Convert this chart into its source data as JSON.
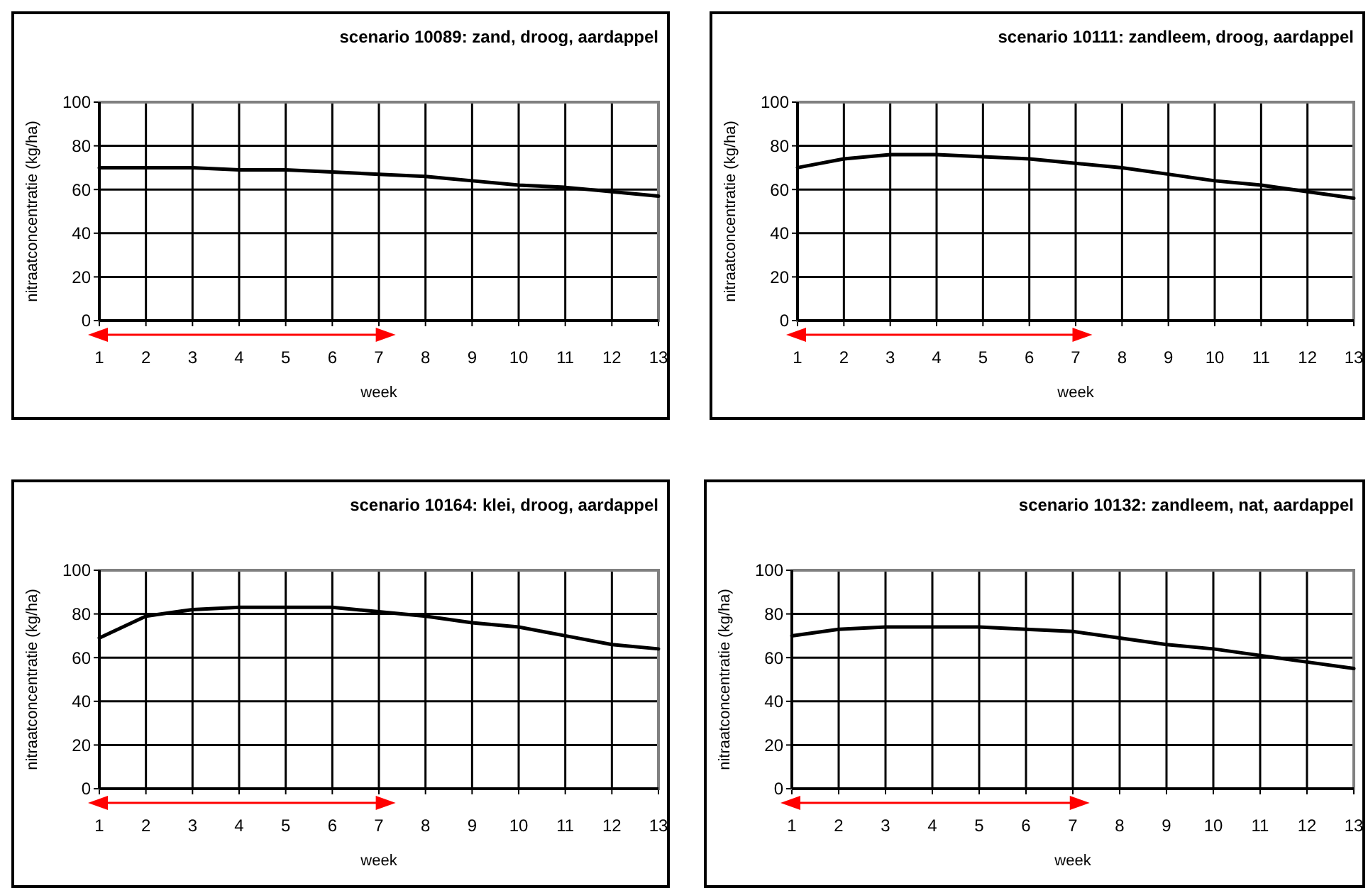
{
  "chart_data": [
    {
      "type": "line",
      "title": "scenario 10089: zand, droog, aardappel",
      "xlabel": "week",
      "ylabel": "nitraatconcentratie (kg/ha)",
      "x": [
        1,
        2,
        3,
        4,
        5,
        6,
        7,
        8,
        9,
        10,
        11,
        12,
        13
      ],
      "xlim": [
        1,
        13
      ],
      "xticks": [
        1,
        2,
        3,
        4,
        5,
        6,
        7,
        8,
        9,
        10,
        11,
        12,
        13
      ],
      "ylim": [
        0,
        100
      ],
      "yticks": [
        0,
        20,
        40,
        60,
        80,
        100
      ],
      "grid": true,
      "line_style": "solid",
      "series": [
        {
          "color": "#000000",
          "values": [
            70,
            70,
            70,
            69,
            69,
            68,
            67,
            66,
            64,
            62,
            61,
            59,
            57
          ]
        }
      ]
    },
    {
      "type": "line",
      "title": "scenario 10111: zandleem, droog, aardappel",
      "xlabel": "week",
      "ylabel": "nitraatconcentratie (kg/ha)",
      "x": [
        1,
        2,
        3,
        4,
        5,
        6,
        7,
        8,
        9,
        10,
        11,
        12,
        13
      ],
      "xlim": [
        1,
        13
      ],
      "xticks": [
        1,
        2,
        3,
        4,
        5,
        6,
        7,
        8,
        9,
        10,
        11,
        12,
        13
      ],
      "ylim": [
        0,
        100
      ],
      "yticks": [
        0,
        20,
        40,
        60,
        80,
        100
      ],
      "grid": true,
      "line_style": "solid",
      "series": [
        {
          "color": "#000000",
          "values": [
            70,
            74,
            76,
            76,
            75,
            74,
            72,
            70,
            67,
            64,
            62,
            59,
            56
          ]
        }
      ]
    },
    {
      "type": "line",
      "title": "scenario 10164: klei, droog, aardappel",
      "xlabel": "week",
      "ylabel": "nitraatconcentratie (kg/ha)",
      "x": [
        1,
        2,
        3,
        4,
        5,
        6,
        7,
        8,
        9,
        10,
        11,
        12,
        13
      ],
      "xlim": [
        1,
        13
      ],
      "xticks": [
        1,
        2,
        3,
        4,
        5,
        6,
        7,
        8,
        9,
        10,
        11,
        12,
        13
      ],
      "ylim": [
        0,
        100
      ],
      "yticks": [
        0,
        20,
        40,
        60,
        80,
        100
      ],
      "grid": true,
      "line_style": "solid",
      "series": [
        {
          "color": "#000000",
          "values": [
            69,
            79,
            82,
            83,
            83,
            83,
            81,
            79,
            76,
            74,
            70,
            66,
            64
          ]
        }
      ]
    },
    {
      "type": "line",
      "title": "scenario 10132: zandleem, nat, aardappel",
      "xlabel": "week",
      "ylabel": "nitraatconcentratie (kg/ha)",
      "x": [
        1,
        2,
        3,
        4,
        5,
        6,
        7,
        8,
        9,
        10,
        11,
        12,
        13
      ],
      "xlim": [
        1,
        13
      ],
      "xticks": [
        1,
        2,
        3,
        4,
        5,
        6,
        7,
        8,
        9,
        10,
        11,
        12,
        13
      ],
      "ylim": [
        0,
        100
      ],
      "yticks": [
        0,
        20,
        40,
        60,
        80,
        100
      ],
      "grid": true,
      "line_style": "solid",
      "series": [
        {
          "color": "#000000",
          "values": [
            70,
            73,
            74,
            74,
            74,
            73,
            72,
            69,
            66,
            64,
            61,
            58,
            55
          ]
        }
      ]
    }
  ]
}
